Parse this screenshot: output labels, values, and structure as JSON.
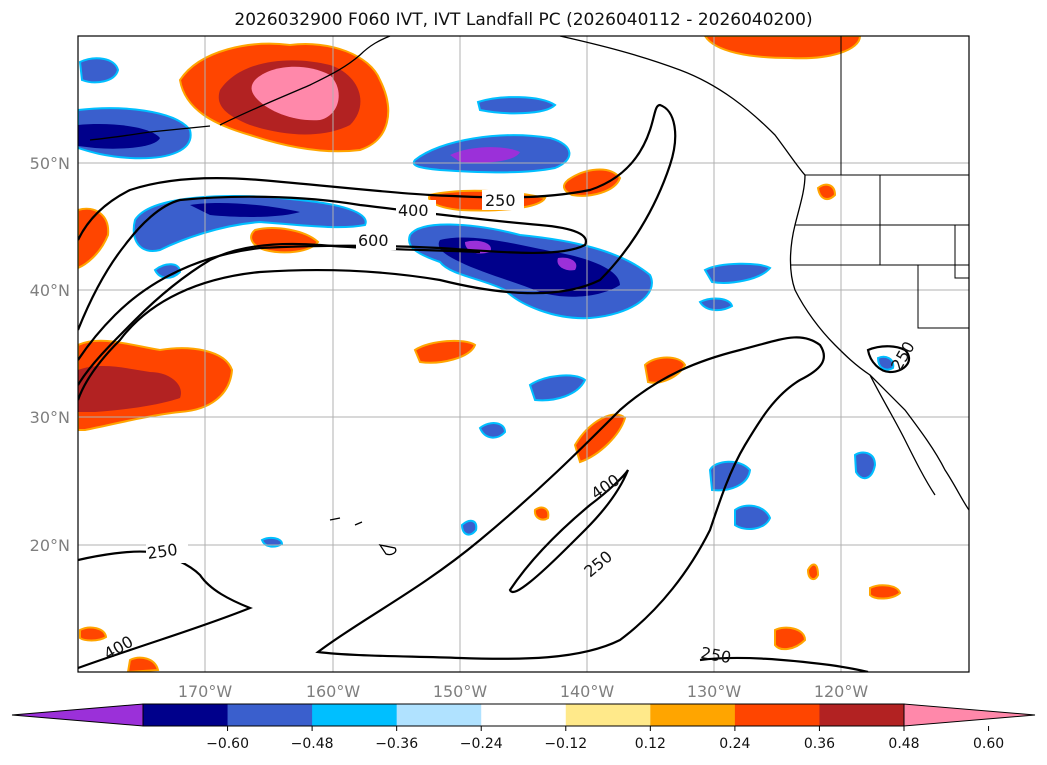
{
  "title": "2026032900 F060 IVT, IVT Landfall PC (2026040112 - 2026040200)",
  "axes": {
    "lon_labels": [
      "170°W",
      "160°W",
      "150°W",
      "140°W",
      "130°W",
      "120°W"
    ],
    "lat_labels": [
      "50°N",
      "40°N",
      "30°N",
      "20°N"
    ]
  },
  "contour_labels": {
    "c400_top": "400",
    "c250_top": "250",
    "c600": "600",
    "c250_coast": "250",
    "c400_mid": "400",
    "c250_mid": "250",
    "c250_left": "250",
    "c400_bottom": "400",
    "c250_bottom": "250"
  },
  "colorbar": {
    "colors": [
      "#9b30d9",
      "#00008b",
      "#3a5fcd",
      "#00bfff",
      "#b0e2ff",
      "#ffffff",
      "#ffe98a",
      "#ffa500",
      "#ff4500",
      "#b22222",
      "#ff88aa"
    ],
    "tick_labels": [
      "−0.60",
      "−0.48",
      "−0.36",
      "−0.24",
      "−0.12",
      "0.12",
      "0.24",
      "0.36",
      "0.48",
      "0.60"
    ]
  }
}
